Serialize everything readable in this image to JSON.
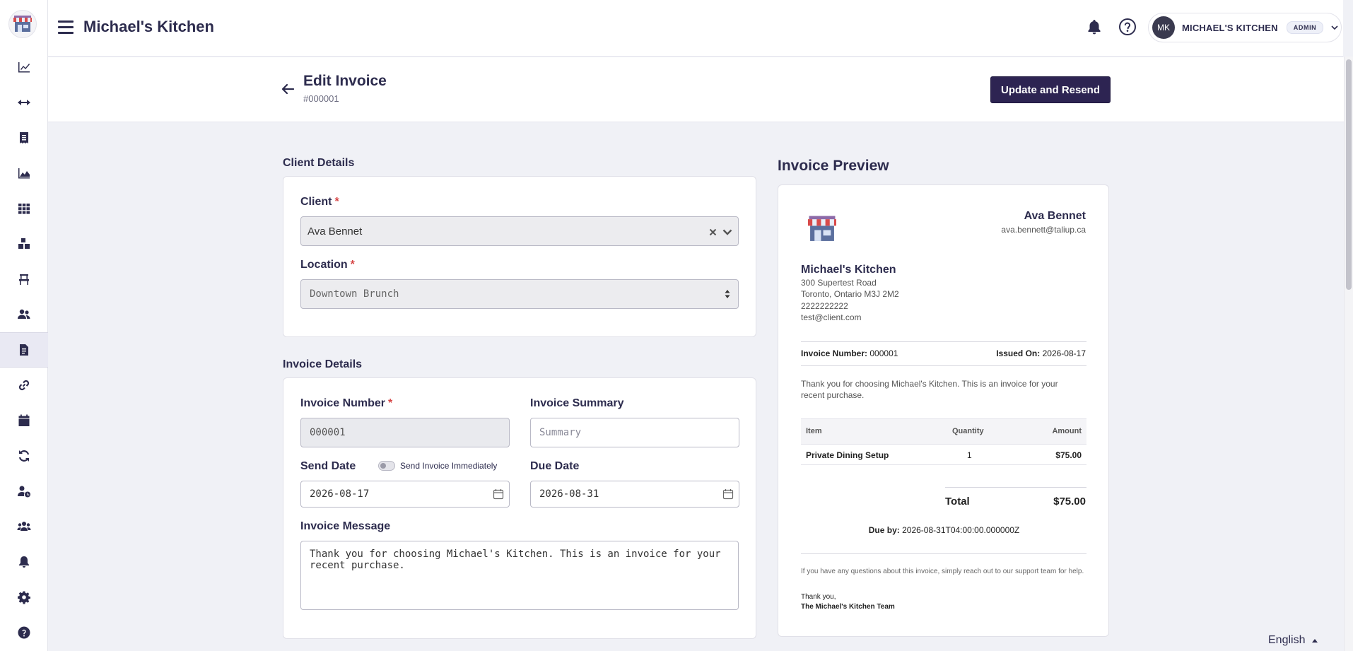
{
  "app": {
    "title": "Michael's Kitchen"
  },
  "user": {
    "initials": "MK",
    "name": "MICHAEL'S KITCHEN",
    "role": "ADMIN"
  },
  "header": {
    "title": "Edit Invoice",
    "subtitle": "#000001",
    "primary_button": "Update and Resend"
  },
  "sidebar": {
    "items": [
      {
        "name": "chart-line-icon"
      },
      {
        "name": "arrows-horizontal-icon"
      },
      {
        "name": "receipt-icon"
      },
      {
        "name": "area-chart-icon"
      },
      {
        "name": "grid-icon"
      },
      {
        "name": "boxes-icon"
      },
      {
        "name": "chair-icon"
      },
      {
        "name": "users-icon"
      },
      {
        "name": "invoice-icon",
        "active": true
      },
      {
        "name": "link-icon"
      },
      {
        "name": "calendar-icon"
      },
      {
        "name": "sync-icon"
      },
      {
        "name": "user-clock-icon"
      },
      {
        "name": "user-group-icon"
      },
      {
        "name": "bell-icon"
      },
      {
        "name": "gear-icon"
      },
      {
        "name": "question-icon"
      }
    ]
  },
  "client_details": {
    "section_label": "Client Details",
    "client_label": "Client",
    "client_value": "Ava Bennet",
    "location_label": "Location",
    "location_value": "Downtown Brunch"
  },
  "invoice_details": {
    "section_label": "Invoice Details",
    "number_label": "Invoice Number",
    "number_value": "000001",
    "summary_label": "Invoice Summary",
    "summary_placeholder": "Summary",
    "send_date_label": "Send Date",
    "send_immediately_label": "Send Invoice Immediately",
    "send_date_value": "2026-08-17",
    "due_date_label": "Due Date",
    "due_date_value": "2026-08-31",
    "message_label": "Invoice Message",
    "message_value": "Thank you for choosing Michael's Kitchen. This is an invoice for your recent purchase."
  },
  "preview": {
    "title": "Invoice Preview",
    "client_name": "Ava Bennet",
    "client_email": "ava.bennett@taliup.ca",
    "business_name": "Michael's Kitchen",
    "address_line1": "300 Supertest Road",
    "address_line2": "Toronto, Ontario M3J 2M2",
    "phone": "2222222222",
    "email": "test@client.com",
    "invoice_number_label": "Invoice Number:",
    "invoice_number": "000001",
    "issued_on_label": "Issued On:",
    "issued_on": "2026-08-17",
    "message": "Thank you for choosing Michael's Kitchen. This is an invoice for your recent purchase.",
    "table": {
      "headers": [
        "Item",
        "Quantity",
        "Amount"
      ],
      "rows": [
        [
          "Private Dining Setup",
          "1",
          "$75.00"
        ]
      ]
    },
    "total_label": "Total",
    "total_value": "$75.00",
    "due_by_label": "Due by:",
    "due_by_value": "2026-08-31T04:00:00.000000Z",
    "footer_note": "If you have any questions about this invoice, simply reach out to our support team for help.",
    "thanks": "Thank you,",
    "signoff": "The Michael's Kitchen Team"
  },
  "language": {
    "label": "English"
  },
  "colors": {
    "primary": "#2d2452",
    "text": "#2d2c4e",
    "required": "#d64545",
    "background": "#f0f1f6"
  }
}
